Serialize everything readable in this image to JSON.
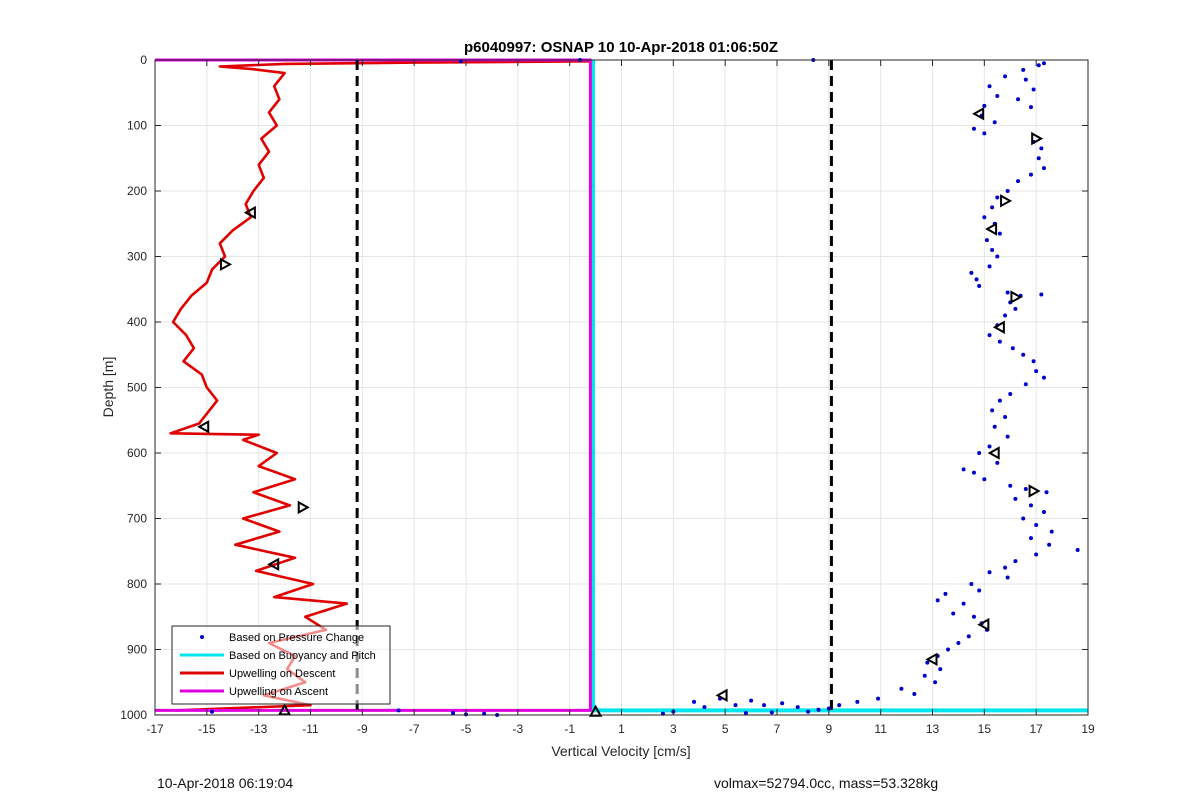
{
  "chart_data": {
    "type": "scatter",
    "title": "p6040997: OSNAP 10 10-Apr-2018 01:06:50Z",
    "xlabel": "Vertical Velocity [cm/s]",
    "ylabel": "Depth [m]",
    "xlim": [
      -17,
      19
    ],
    "ylim": [
      0,
      1000
    ],
    "y_reversed": true,
    "grid": true,
    "x_ticks": [
      -17,
      -15,
      -13,
      -11,
      -9,
      -7,
      -5,
      -3,
      -1,
      1,
      3,
      5,
      7,
      9,
      11,
      13,
      15,
      17,
      19
    ],
    "y_ticks": [
      0,
      100,
      200,
      300,
      400,
      500,
      600,
      700,
      800,
      900,
      1000
    ],
    "legend_position": "bottom-left",
    "series": [
      {
        "name": "Based on Pressure Change",
        "style": "dots",
        "color": "#0000cc",
        "points": [
          [
            8.4,
            0
          ],
          [
            -5.2,
            2
          ],
          [
            -0.6,
            0
          ],
          [
            17.3,
            5
          ],
          [
            17.1,
            8
          ],
          [
            16.5,
            15
          ],
          [
            15.8,
            25
          ],
          [
            16.6,
            30
          ],
          [
            15.2,
            40
          ],
          [
            16.9,
            45
          ],
          [
            15.5,
            55
          ],
          [
            16.3,
            60
          ],
          [
            15.0,
            70
          ],
          [
            16.8,
            72
          ],
          [
            14.9,
            85
          ],
          [
            15.4,
            95
          ],
          [
            14.6,
            105
          ],
          [
            15.0,
            112
          ],
          [
            16.9,
            125
          ],
          [
            17.2,
            135
          ],
          [
            17.1,
            150
          ],
          [
            17.3,
            165
          ],
          [
            16.8,
            175
          ],
          [
            16.3,
            185
          ],
          [
            15.9,
            200
          ],
          [
            15.5,
            210
          ],
          [
            15.3,
            225
          ],
          [
            15.0,
            240
          ],
          [
            15.4,
            250
          ],
          [
            15.6,
            265
          ],
          [
            15.1,
            275
          ],
          [
            15.3,
            290
          ],
          [
            15.5,
            300
          ],
          [
            15.2,
            315
          ],
          [
            14.5,
            325
          ],
          [
            14.7,
            335
          ],
          [
            14.8,
            345
          ],
          [
            15.9,
            355
          ],
          [
            16.4,
            360
          ],
          [
            17.2,
            358
          ],
          [
            16.0,
            370
          ],
          [
            16.2,
            380
          ],
          [
            15.8,
            390
          ],
          [
            15.5,
            405
          ],
          [
            15.2,
            420
          ],
          [
            15.6,
            430
          ],
          [
            16.1,
            440
          ],
          [
            16.5,
            450
          ],
          [
            16.9,
            460
          ],
          [
            17.0,
            475
          ],
          [
            17.3,
            485
          ],
          [
            16.6,
            495
          ],
          [
            16.0,
            510
          ],
          [
            15.6,
            520
          ],
          [
            15.3,
            535
          ],
          [
            15.8,
            545
          ],
          [
            15.4,
            560
          ],
          [
            15.9,
            575
          ],
          [
            15.2,
            590
          ],
          [
            14.8,
            600
          ],
          [
            15.5,
            615
          ],
          [
            14.2,
            625
          ],
          [
            14.6,
            630
          ],
          [
            15.0,
            640
          ],
          [
            16.0,
            650
          ],
          [
            16.6,
            655
          ],
          [
            17.4,
            660
          ],
          [
            16.2,
            670
          ],
          [
            16.8,
            680
          ],
          [
            17.3,
            690
          ],
          [
            16.5,
            700
          ],
          [
            17.0,
            710
          ],
          [
            17.6,
            720
          ],
          [
            16.8,
            730
          ],
          [
            17.5,
            740
          ],
          [
            18.6,
            748
          ],
          [
            17.0,
            755
          ],
          [
            16.2,
            765
          ],
          [
            15.8,
            775
          ],
          [
            15.2,
            782
          ],
          [
            15.9,
            790
          ],
          [
            14.5,
            800
          ],
          [
            14.8,
            810
          ],
          [
            13.5,
            815
          ],
          [
            13.2,
            825
          ],
          [
            14.2,
            830
          ],
          [
            13.8,
            845
          ],
          [
            14.6,
            850
          ],
          [
            14.9,
            860
          ],
          [
            15.1,
            870
          ],
          [
            14.4,
            880
          ],
          [
            14.0,
            890
          ],
          [
            13.6,
            900
          ],
          [
            13.2,
            910
          ],
          [
            12.8,
            920
          ],
          [
            13.3,
            930
          ],
          [
            12.7,
            940
          ],
          [
            13.1,
            950
          ],
          [
            11.8,
            960
          ],
          [
            12.3,
            968
          ],
          [
            10.9,
            975
          ],
          [
            10.1,
            980
          ],
          [
            9.4,
            985
          ],
          [
            9.0,
            990
          ],
          [
            8.6,
            992
          ],
          [
            7.8,
            988
          ],
          [
            7.2,
            982
          ],
          [
            6.5,
            985
          ],
          [
            6.0,
            978
          ],
          [
            5.4,
            985
          ],
          [
            4.8,
            975
          ],
          [
            4.2,
            988
          ],
          [
            3.8,
            980
          ],
          [
            3.0,
            995
          ],
          [
            2.6,
            998
          ],
          [
            8.2,
            995
          ],
          [
            6.8,
            996
          ],
          [
            5.8,
            997
          ],
          [
            -5.5,
            997
          ],
          [
            -5.0,
            999
          ],
          [
            -4.3,
            998
          ],
          [
            -3.8,
            1000
          ],
          [
            -7.6,
            993
          ],
          [
            -14.8,
            995
          ]
        ]
      },
      {
        "name": "Based on Buoyancy and Pitch",
        "style": "line",
        "color": "#00e5ee",
        "points": [
          [
            -0.1,
            0
          ],
          [
            -0.1,
            993
          ],
          [
            19,
            993
          ]
        ]
      },
      {
        "name": "Upwelling on Descent",
        "style": "line",
        "color": "#e00000",
        "points": [
          [
            -0.2,
            2
          ],
          [
            -7.0,
            4
          ],
          [
            -12.0,
            6
          ],
          [
            -14.5,
            10
          ],
          [
            -13.2,
            14
          ],
          [
            -12.0,
            20
          ],
          [
            -12.4,
            40
          ],
          [
            -12.2,
            60
          ],
          [
            -12.6,
            80
          ],
          [
            -12.3,
            100
          ],
          [
            -12.9,
            120
          ],
          [
            -12.6,
            140
          ],
          [
            -13.0,
            160
          ],
          [
            -12.8,
            180
          ],
          [
            -13.2,
            200
          ],
          [
            -13.5,
            220
          ],
          [
            -13.3,
            240
          ],
          [
            -14.0,
            260
          ],
          [
            -14.5,
            280
          ],
          [
            -14.3,
            300
          ],
          [
            -14.8,
            320
          ],
          [
            -15.0,
            340
          ],
          [
            -15.6,
            360
          ],
          [
            -16.0,
            380
          ],
          [
            -16.3,
            400
          ],
          [
            -15.8,
            420
          ],
          [
            -15.5,
            440
          ],
          [
            -15.9,
            460
          ],
          [
            -15.2,
            480
          ],
          [
            -15.0,
            500
          ],
          [
            -14.6,
            520
          ],
          [
            -15.0,
            540
          ],
          [
            -15.3,
            555
          ],
          [
            -16.4,
            570
          ],
          [
            -13.0,
            572
          ],
          [
            -13.6,
            580
          ],
          [
            -12.3,
            600
          ],
          [
            -13.0,
            620
          ],
          [
            -11.6,
            640
          ],
          [
            -13.2,
            660
          ],
          [
            -11.8,
            680
          ],
          [
            -13.6,
            700
          ],
          [
            -12.2,
            720
          ],
          [
            -13.9,
            740
          ],
          [
            -11.6,
            760
          ],
          [
            -13.1,
            780
          ],
          [
            -10.9,
            800
          ],
          [
            -12.4,
            820
          ],
          [
            -9.6,
            830
          ],
          [
            -11.2,
            850
          ],
          [
            -10.4,
            870
          ],
          [
            -12.6,
            890
          ],
          [
            -11.6,
            910
          ],
          [
            -11.9,
            930
          ],
          [
            -11.2,
            950
          ],
          [
            -12.8,
            970
          ],
          [
            -11.0,
            985
          ],
          [
            -16.2,
            993
          ]
        ]
      },
      {
        "name": "Upwelling on Ascent",
        "style": "line",
        "color": "#e000e0",
        "points": [
          [
            -17,
            0
          ],
          [
            -0.2,
            0
          ],
          [
            -0.2,
            993
          ],
          [
            -17,
            993
          ]
        ]
      }
    ],
    "reference_lines": [
      {
        "x": -9.2,
        "style": "dashed",
        "color": "#000000"
      },
      {
        "x": 9.1,
        "style": "dashed",
        "color": "#000000"
      }
    ],
    "markers": [
      {
        "x": 14.8,
        "y": 82,
        "dir": "left"
      },
      {
        "x": 17.0,
        "y": 120,
        "dir": "right"
      },
      {
        "x": 15.8,
        "y": 215,
        "dir": "right"
      },
      {
        "x": 15.3,
        "y": 258,
        "dir": "left"
      },
      {
        "x": 16.2,
        "y": 362,
        "dir": "right"
      },
      {
        "x": 15.6,
        "y": 408,
        "dir": "left"
      },
      {
        "x": 15.4,
        "y": 600,
        "dir": "left"
      },
      {
        "x": 16.9,
        "y": 658,
        "dir": "right"
      },
      {
        "x": 15.0,
        "y": 862,
        "dir": "left"
      },
      {
        "x": 13.0,
        "y": 915,
        "dir": "left"
      },
      {
        "x": 4.9,
        "y": 970,
        "dir": "left"
      },
      {
        "x": -13.3,
        "y": 233,
        "dir": "left"
      },
      {
        "x": -14.3,
        "y": 312,
        "dir": "right"
      },
      {
        "x": -15.1,
        "y": 560,
        "dir": "left"
      },
      {
        "x": -11.3,
        "y": 683,
        "dir": "right"
      },
      {
        "x": -12.4,
        "y": 770,
        "dir": "left"
      },
      {
        "x": -12.0,
        "y": 993,
        "dir": "up"
      },
      {
        "x": 0.0,
        "y": 995,
        "dir": "up"
      }
    ]
  },
  "footer": {
    "left_text": "10-Apr-2018 06:19:04",
    "right_text": "volmax=52794.0cc, mass=53.328kg"
  }
}
